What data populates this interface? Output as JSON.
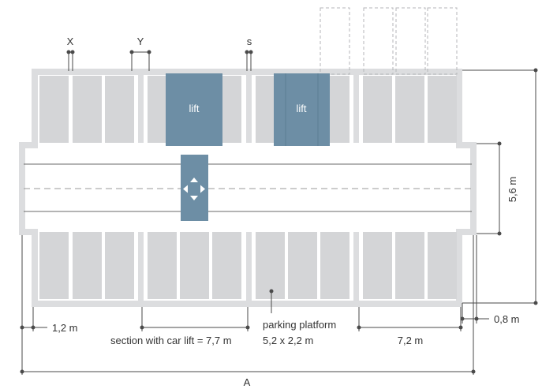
{
  "colors": {
    "slot": "#d4d5d7",
    "frame": "#dcdddf",
    "lift": "#6d8ea5",
    "line": "#4a4a4a",
    "dashed": "#b5b6b8",
    "text": "#333333"
  },
  "markers": {
    "x": "X",
    "y": "Y",
    "s": "s"
  },
  "lifts": [
    {
      "label": "lift"
    },
    {
      "label": "lift"
    }
  ],
  "turntable_icon": "four-way-arrows-icon",
  "dimensions": {
    "slot_width": "1,2 m",
    "section_with_lift": "section with car lift = 7,7 m",
    "platform_label": "parking platform",
    "platform_size": "5,2 x 2,2 m",
    "section_width": "7,2 m",
    "height": "5,6 m",
    "offset": "0,8 m",
    "total_width": "A"
  }
}
